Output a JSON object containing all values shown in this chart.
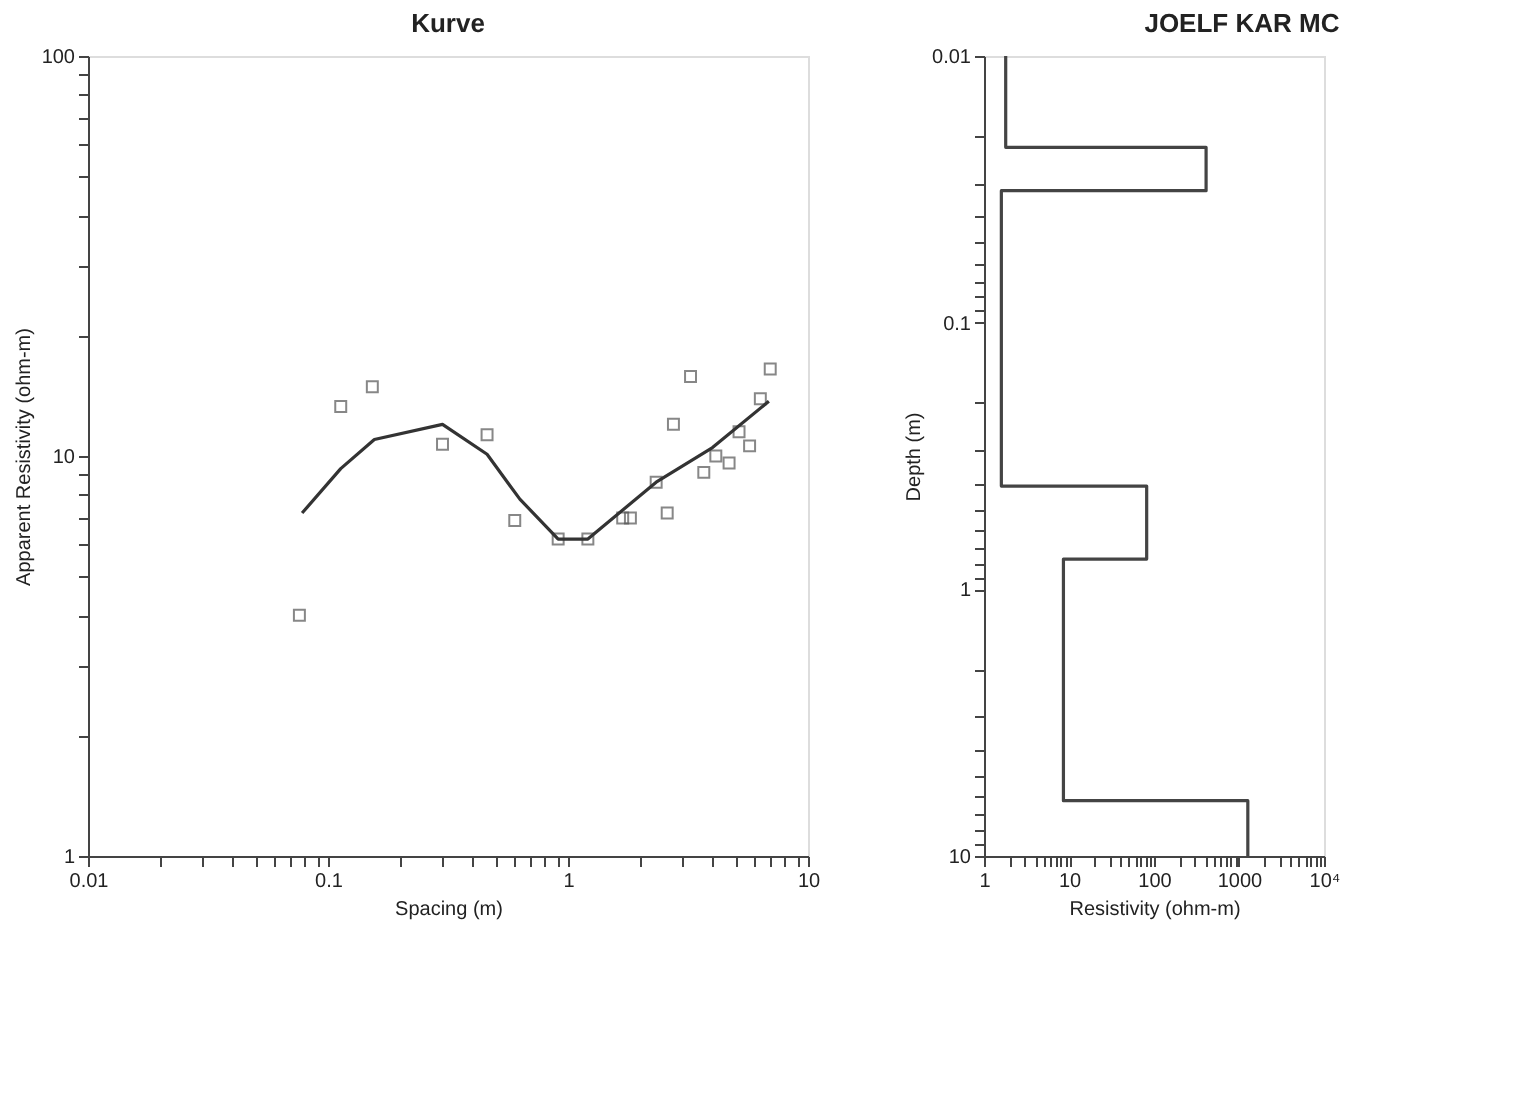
{
  "chart_data": [
    {
      "type": "scatter",
      "title": "Kurve",
      "xlabel": "Spacing (m)",
      "ylabel": "Apparent Resistivity (ohm-m)",
      "log": "xy",
      "grid": false,
      "xlim": [
        0.01,
        10
      ],
      "ylim": [
        1,
        100
      ],
      "xticks": [
        0.01,
        {
          "value": 0.02,
          "label": null
        },
        {
          "value": 0.03,
          "label": null
        },
        {
          "value": 0.04,
          "label": null
        },
        {
          "value": 0.05,
          "label": null
        },
        {
          "value": 0.06,
          "label": null
        },
        {
          "value": 0.07,
          "label": null
        },
        {
          "value": 0.08,
          "label": null
        },
        {
          "value": 0.09,
          "label": null
        },
        0.1,
        {
          "value": 0.2,
          "label": null
        },
        {
          "value": 0.3,
          "label": null
        },
        {
          "value": 0.4,
          "label": null
        },
        {
          "value": 0.5,
          "label": null
        },
        {
          "value": 0.6,
          "label": null
        },
        {
          "value": 0.7,
          "label": null
        },
        {
          "value": 0.8,
          "label": null
        },
        {
          "value": 0.9,
          "label": null
        },
        1,
        {
          "value": 2,
          "label": null
        },
        {
          "value": 3,
          "label": null
        },
        {
          "value": 4,
          "label": null
        },
        {
          "value": 5,
          "label": null
        },
        {
          "value": 6,
          "label": null
        },
        {
          "value": 7,
          "label": null
        },
        {
          "value": 8,
          "label": null
        },
        {
          "value": 9,
          "label": null
        },
        10
      ],
      "yticks": [
        1,
        {
          "value": 2,
          "label": null
        },
        {
          "value": 3,
          "label": null
        },
        {
          "value": 4,
          "label": null
        },
        {
          "value": 5,
          "label": null
        },
        {
          "value": 6,
          "label": null
        },
        {
          "value": 7,
          "label": null
        },
        {
          "value": 8,
          "label": null
        },
        {
          "value": 9,
          "label": null
        },
        10,
        {
          "value": 20,
          "label": null
        },
        {
          "value": 30,
          "label": null
        },
        {
          "value": 40,
          "label": null
        },
        {
          "value": 50,
          "label": null
        },
        {
          "value": 60,
          "label": null
        },
        {
          "value": 70,
          "label": null
        },
        {
          "value": 80,
          "label": null
        },
        {
          "value": 90,
          "label": null
        },
        100
      ],
      "series": [
        {
          "marker": "square",
          "color": "#555555",
          "x": [
            0.076,
            0.113,
            0.153,
            0.3,
            0.46,
            0.6,
            0.91,
            1.21,
            1.69,
            1.82,
            2.33,
            2.59,
            2.75,
            3.24,
            3.68,
            4.13,
            4.69,
            5.16,
            5.71,
            6.33,
            6.96
          ],
          "values": [
            4.0,
            13.3,
            14.9,
            10.7,
            11.3,
            6.9,
            6.2,
            6.2,
            7.0,
            7.0,
            8.6,
            7.2,
            12.0,
            15.8,
            9.1,
            10.0,
            9.6,
            11.5,
            10.6,
            13.9,
            16.5
          ]
        },
        {
          "type": "line",
          "marker": "none",
          "line_style": "solid",
          "color": "#333333",
          "x": [
            0.078,
            0.113,
            0.156,
            0.3,
            0.46,
            0.63,
            0.91,
            1.21,
            2.33,
            4.0,
            6.87
          ],
          "values": [
            7.2,
            9.3,
            11.0,
            12.0,
            10.1,
            7.8,
            6.2,
            6.2,
            8.6,
            10.5,
            13.7
          ]
        }
      ]
    },
    {
      "type": "line",
      "title": "JOELF KAR MC",
      "xlabel": "Resistivity (ohm-m)",
      "ylabel": "Depth (m)",
      "log": "xy",
      "grid": false,
      "line_style": "solid",
      "xlim": [
        1,
        10000
      ],
      "ylim": [
        10,
        0.01
      ],
      "xticks": [
        1,
        {
          "value": 2,
          "label": null
        },
        {
          "value": 3,
          "label": null
        },
        {
          "value": 4,
          "label": null
        },
        {
          "value": 5,
          "label": null
        },
        {
          "value": 6,
          "label": null
        },
        {
          "value": 7,
          "label": null
        },
        {
          "value": 8,
          "label": null
        },
        {
          "value": 9,
          "label": null
        },
        10,
        {
          "value": 20,
          "label": null
        },
        {
          "value": 30,
          "label": null
        },
        {
          "value": 40,
          "label": null
        },
        {
          "value": 50,
          "label": null
        },
        {
          "value": 60,
          "label": null
        },
        {
          "value": 70,
          "label": null
        },
        {
          "value": 80,
          "label": null
        },
        {
          "value": 90,
          "label": null
        },
        100,
        {
          "value": 200,
          "label": null
        },
        {
          "value": 300,
          "label": null
        },
        {
          "value": 400,
          "label": null
        },
        {
          "value": 500,
          "label": null
        },
        {
          "value": 600,
          "label": null
        },
        {
          "value": 700,
          "label": null
        },
        {
          "value": 800,
          "label": null
        },
        {
          "value": 900,
          "label": null
        },
        1000,
        {
          "value": 2000,
          "label": null
        },
        {
          "value": 3000,
          "label": null
        },
        {
          "value": 4000,
          "label": null
        },
        {
          "value": 5000,
          "label": null
        },
        {
          "value": 6000,
          "label": null
        },
        {
          "value": 7000,
          "label": null
        },
        {
          "value": 8000,
          "label": null
        },
        {
          "value": 9000,
          "label": null
        },
        {
          "value": 10000,
          "label": "10⁴"
        }
      ],
      "yticks": [
        0.01,
        {
          "value": 0.02,
          "label": null
        },
        {
          "value": 0.03,
          "label": null
        },
        {
          "value": 0.04,
          "label": null
        },
        {
          "value": 0.05,
          "label": null
        },
        {
          "value": 0.06,
          "label": null
        },
        {
          "value": 0.07,
          "label": null
        },
        {
          "value": 0.08,
          "label": null
        },
        {
          "value": 0.09,
          "label": null
        },
        0.1,
        {
          "value": 0.2,
          "label": null
        },
        {
          "value": 0.3,
          "label": null
        },
        {
          "value": 0.4,
          "label": null
        },
        {
          "value": 0.5,
          "label": null
        },
        {
          "value": 0.6,
          "label": null
        },
        {
          "value": 0.7,
          "label": null
        },
        {
          "value": 0.8,
          "label": null
        },
        {
          "value": 0.9,
          "label": null
        },
        1,
        {
          "value": 2,
          "label": null
        },
        {
          "value": 3,
          "label": null
        },
        {
          "value": 4,
          "label": null
        },
        {
          "value": 5,
          "label": null
        },
        {
          "value": 6,
          "label": null
        },
        {
          "value": 7,
          "label": null
        },
        {
          "value": 8,
          "label": null
        },
        {
          "value": 9,
          "label": null
        },
        10
      ],
      "series": [
        {
          "color": "#444444",
          "x": [
            1.8,
            1.8,
            410,
            410,
            1.6,
            1.6,
            82,
            82,
            8.6,
            8.6,
            1270,
            1270
          ],
          "values": [
            0.01,
            0.022,
            0.022,
            0.032,
            0.032,
            0.41,
            0.41,
            0.77,
            0.77,
            6.2,
            6.2,
            10
          ]
        }
      ]
    }
  ]
}
